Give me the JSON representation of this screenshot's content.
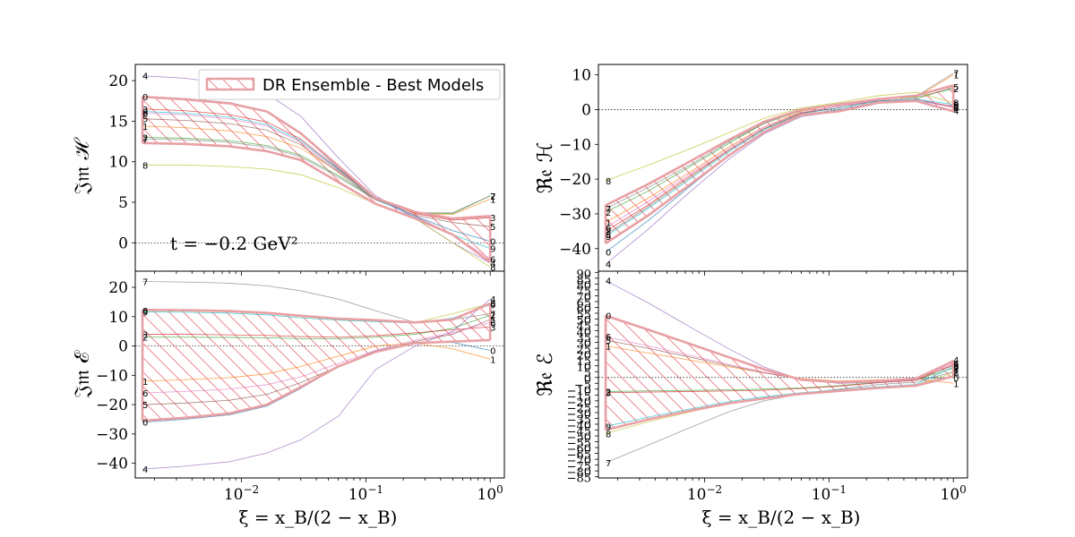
{
  "figure": {
    "xlabel": "ξ = x_B/(2 − x_B)",
    "legend_label": "DR Ensemble - Best Models",
    "annotation": "t = −0.2 GeV²"
  },
  "colors": {
    "band_edge": "#e8a0a4",
    "band_hatch": "#e87a80",
    "models": [
      "#1f77b4",
      "#ff7f0e",
      "#2ca02c",
      "#d62728",
      "#9467bd",
      "#8c564b",
      "#e377c2",
      "#7f7f7f",
      "#bcbd22",
      "#17becf"
    ]
  },
  "chart_data": [
    {
      "type": "line",
      "id": "imH",
      "ylabel": "𝔍𝔪 ℋ",
      "xscale": "log",
      "xlim": [
        0.0014,
        1.3
      ],
      "ylim": [
        -3.5,
        22
      ],
      "yticks": [
        0,
        5,
        10,
        15,
        20
      ],
      "xticks": [
        "10^-2",
        "10^-1",
        "10^0"
      ],
      "hline": 0,
      "x": [
        0.0016,
        0.0035,
        0.008,
        0.016,
        0.03,
        0.06,
        0.12,
        0.25,
        0.5,
        1.0
      ],
      "band": {
        "upper": [
          18.0,
          17.7,
          17.2,
          16.2,
          13.5,
          9.5,
          5.5,
          3.8,
          3.0,
          3.3
        ],
        "lower": [
          12.3,
          12.2,
          11.9,
          11.3,
          10.2,
          7.5,
          4.8,
          3.0,
          1.0,
          -2.4
        ]
      },
      "series": [
        {
          "name": "0",
          "values": [
            18.0,
            17.8,
            17.3,
            16.2,
            13.5,
            9.2,
            5.6,
            3.3,
            1.5,
            0.2
          ]
        },
        {
          "name": "1",
          "values": [
            14.4,
            14.2,
            13.8,
            13.1,
            11.7,
            8.8,
            5.6,
            3.6,
            3.5,
            5.4
          ]
        },
        {
          "name": "2",
          "values": [
            13.0,
            12.9,
            12.6,
            12.0,
            10.8,
            8.3,
            5.4,
            3.7,
            3.6,
            5.8
          ]
        },
        {
          "name": "3",
          "values": [
            16.5,
            16.3,
            15.8,
            14.9,
            12.8,
            9.1,
            5.5,
            3.6,
            2.8,
            3.1
          ]
        },
        {
          "name": "4",
          "values": [
            20.6,
            20.3,
            19.6,
            18.4,
            15.6,
            10.5,
            5.8,
            3.0,
            0.0,
            -2.5
          ]
        },
        {
          "name": "5",
          "values": [
            15.3,
            15.1,
            14.7,
            13.9,
            12.1,
            8.7,
            5.3,
            3.4,
            2.5,
            2.0
          ]
        },
        {
          "name": "6",
          "values": [
            16.0,
            15.8,
            15.3,
            14.4,
            12.4,
            8.9,
            5.4,
            3.3,
            1.0,
            -2.0
          ]
        },
        {
          "name": "7",
          "values": [
            12.8,
            12.7,
            12.4,
            11.8,
            10.6,
            8.1,
            5.3,
            3.7,
            3.7,
            5.8
          ]
        },
        {
          "name": "8",
          "values": [
            9.6,
            9.6,
            9.4,
            9.1,
            8.4,
            6.8,
            4.8,
            3.0,
            0.0,
            -3.0
          ]
        },
        {
          "name": "9",
          "values": [
            16.2,
            16.0,
            15.5,
            14.6,
            12.6,
            9.0,
            5.4,
            3.2,
            1.0,
            -0.7
          ]
        }
      ],
      "end_labels_left": [
        "4",
        "0",
        "3",
        "9",
        "6",
        "1",
        "2",
        "8"
      ],
      "end_labels_right": [
        "7",
        "1",
        "3",
        "5",
        "0",
        "9",
        "6",
        "2",
        "8"
      ]
    },
    {
      "type": "line",
      "id": "reH",
      "ylabel": "ℜ𝔢 ℋ",
      "xscale": "log",
      "xlim": [
        0.0014,
        1.3
      ],
      "ylim": [
        -46.5,
        13
      ],
      "yticks": [
        -40,
        -30,
        -20,
        -10,
        0,
        10
      ],
      "xticks": [
        "10^-2",
        "10^-1",
        "10^0"
      ],
      "hline": 0,
      "x": [
        0.0016,
        0.0035,
        0.008,
        0.016,
        0.03,
        0.06,
        0.12,
        0.25,
        0.5,
        1.0
      ],
      "band": {
        "upper": [
          -27.5,
          -21.5,
          -14.5,
          -8.5,
          -3.5,
          0.0,
          1.5,
          3.0,
          4.0,
          7.0
        ],
        "lower": [
          -38.5,
          -30.5,
          -21.0,
          -13.0,
          -6.5,
          -1.5,
          -0.5,
          2.0,
          2.5,
          -0.5
        ]
      },
      "series": [
        {
          "name": "0",
          "values": [
            -41.0,
            -32.0,
            -21.5,
            -13.0,
            -6.5,
            -1.5,
            0.0,
            2.2,
            2.5,
            1.0
          ]
        },
        {
          "name": "1",
          "values": [
            -32.5,
            -25.5,
            -17.5,
            -10.5,
            -5.0,
            -0.5,
            1.5,
            3.0,
            3.5,
            10.0
          ]
        },
        {
          "name": "2",
          "values": [
            -29.5,
            -23.5,
            -16.0,
            -9.5,
            -4.0,
            -0.3,
            1.5,
            3.0,
            3.5,
            6.0
          ]
        },
        {
          "name": "3",
          "values": [
            -35.0,
            -27.5,
            -18.5,
            -11.5,
            -5.5,
            -1.0,
            0.5,
            2.5,
            3.0,
            0.8
          ]
        },
        {
          "name": "4",
          "values": [
            -44.5,
            -34.5,
            -23.0,
            -14.0,
            -7.0,
            -2.0,
            -0.5,
            2.0,
            2.5,
            -0.3
          ]
        },
        {
          "name": "5",
          "values": [
            -36.0,
            -28.0,
            -19.0,
            -11.5,
            -5.5,
            -1.0,
            1.0,
            2.5,
            3.0,
            6.5
          ]
        },
        {
          "name": "6",
          "values": [
            -34.0,
            -26.5,
            -18.0,
            -11.0,
            -5.0,
            -0.8,
            1.0,
            2.7,
            3.0,
            0.5
          ]
        },
        {
          "name": "7",
          "values": [
            -28.5,
            -22.5,
            -15.5,
            -9.0,
            -4.0,
            0.0,
            1.5,
            3.2,
            3.8,
            10.5
          ]
        },
        {
          "name": "8",
          "values": [
            -20.5,
            -16.0,
            -11.0,
            -6.5,
            -2.5,
            0.5,
            2.0,
            4.0,
            5.0,
            2.0
          ]
        },
        {
          "name": "9",
          "values": [
            -36.5,
            -28.5,
            -19.5,
            -12.0,
            -5.8,
            -1.2,
            0.5,
            2.5,
            3.0,
            1.5
          ]
        }
      ],
      "end_labels_left": [
        "8",
        "2",
        "7",
        "1",
        "3",
        "6",
        "5",
        "9",
        "0",
        "4"
      ],
      "end_labels_right": [
        "7",
        "1",
        "2",
        "5",
        "0",
        "9",
        "3",
        "6",
        "4"
      ]
    },
    {
      "type": "line",
      "id": "imE",
      "ylabel": "𝔍𝔪 ℰ",
      "xscale": "log",
      "xlim": [
        0.0014,
        1.3
      ],
      "ylim": [
        -45,
        25.5
      ],
      "yticks": [
        -40,
        -30,
        -20,
        -10,
        0,
        10,
        20
      ],
      "xticks": [
        "10^-2",
        "10^-1",
        "10^0"
      ],
      "hline": 0,
      "x": [
        0.0016,
        0.0035,
        0.008,
        0.016,
        0.03,
        0.06,
        0.12,
        0.25,
        0.5,
        1.0
      ],
      "band": {
        "upper": [
          12.3,
          12.2,
          11.9,
          11.3,
          10.3,
          9.3,
          8.8,
          8.0,
          9.0,
          14.5
        ],
        "lower": [
          -25.5,
          -24.5,
          -23.0,
          -20.0,
          -14.0,
          -7.0,
          -2.0,
          1.0,
          1.5,
          2.0
        ]
      },
      "series": [
        {
          "name": "0",
          "values": [
            -26.0,
            -25.0,
            -23.5,
            -20.5,
            -14.5,
            -7.0,
            -1.5,
            1.0,
            1.2,
            -1.5
          ]
        },
        {
          "name": "1",
          "values": [
            -12.0,
            -11.5,
            -10.8,
            -9.5,
            -7.0,
            -3.5,
            0.0,
            1.0,
            -1.0,
            -4.5
          ]
        },
        {
          "name": "2",
          "values": [
            3.0,
            3.0,
            2.9,
            2.8,
            2.5,
            2.5,
            3.0,
            4.0,
            6.0,
            10.5
          ]
        },
        {
          "name": "3",
          "values": [
            4.0,
            4.0,
            3.8,
            3.6,
            3.2,
            3.0,
            3.5,
            4.5,
            5.5,
            6.5
          ]
        },
        {
          "name": "4",
          "values": [
            -42.0,
            -41.0,
            -39.5,
            -36.5,
            -32.0,
            -24.0,
            -8.0,
            0.0,
            5.0,
            16.0
          ]
        },
        {
          "name": "5",
          "values": [
            -20.0,
            -19.5,
            -18.5,
            -16.5,
            -12.5,
            -7.0,
            -2.0,
            1.5,
            4.0,
            9.0
          ]
        },
        {
          "name": "6",
          "values": [
            -16.0,
            -15.5,
            -14.7,
            -13.2,
            -10.5,
            -6.0,
            -1.5,
            2.0,
            4.5,
            8.0
          ]
        },
        {
          "name": "7",
          "values": [
            22.0,
            21.8,
            21.4,
            20.5,
            18.8,
            16.0,
            12.0,
            8.0,
            9.0,
            11.0
          ]
        },
        {
          "name": "8",
          "values": [
            12.0,
            11.9,
            11.6,
            11.0,
            10.0,
            9.0,
            8.5,
            8.0,
            11.0,
            14.5
          ]
        },
        {
          "name": "9",
          "values": [
            11.6,
            11.5,
            11.2,
            10.6,
            9.6,
            8.8,
            8.3,
            7.8,
            9.5,
            14.0
          ]
        }
      ],
      "end_labels_left": [
        "7",
        "8",
        "9",
        "3",
        "2",
        "1",
        "6",
        "5",
        "0",
        "4"
      ],
      "end_labels_right": [
        "4",
        "8",
        "9",
        "2",
        "6",
        "5",
        "3",
        "0",
        "1"
      ]
    },
    {
      "type": "line",
      "id": "reE",
      "ylabel": "ℜ𝔢 ℰ",
      "xscale": "log",
      "xlim": [
        0.0014,
        1.3
      ],
      "ylim": [
        -86,
        91
      ],
      "yticks": [
        -85,
        -80,
        -75,
        -70,
        -65,
        -60,
        -55,
        -50,
        -45,
        -40,
        -35,
        -30,
        -25,
        -20,
        -15,
        -10,
        -5,
        0,
        5,
        10,
        15,
        20,
        25,
        30,
        35,
        40,
        45,
        50,
        55,
        60,
        65,
        70,
        75,
        80,
        85,
        90
      ],
      "xticks": [
        "10^-2",
        "10^-1",
        "10^0"
      ],
      "hline": 0,
      "x": [
        0.0016,
        0.0035,
        0.008,
        0.016,
        0.03,
        0.06,
        0.12,
        0.25,
        0.5,
        1.0
      ],
      "band": {
        "upper": [
          53.0,
          41.0,
          28.0,
          17.0,
          7.0,
          -2.0,
          -4.0,
          -3.0,
          -1.0,
          14.0
        ],
        "lower": [
          -45.0,
          -36.0,
          -28.0,
          -22.0,
          -18.0,
          -14.0,
          -11.5,
          -9.0,
          -7.0,
          1.0
        ]
      },
      "series": [
        {
          "name": "0",
          "values": [
            53.0,
            41.0,
            28.0,
            17.0,
            7.0,
            -2.0,
            -4.0,
            -3.0,
            -1.0,
            0.0
          ]
        },
        {
          "name": "1",
          "values": [
            27.0,
            21.0,
            14.5,
            9.0,
            4.0,
            -1.0,
            -3.0,
            -2.0,
            -1.0,
            -5.0
          ]
        },
        {
          "name": "2",
          "values": [
            -12.0,
            -11.5,
            -11.0,
            -10.5,
            -10.0,
            -9.0,
            -7.0,
            -4.0,
            -2.0,
            8.0
          ]
        },
        {
          "name": "3",
          "values": [
            -13.0,
            -12.5,
            -12.0,
            -11.5,
            -11.0,
            -9.5,
            -7.5,
            -4.5,
            -2.5,
            11.0
          ]
        },
        {
          "name": "4",
          "values": [
            83.0,
            64.0,
            42.0,
            24.0,
            9.0,
            -2.0,
            -5.0,
            -4.0,
            -2.0,
            15.0
          ]
        },
        {
          "name": "5",
          "values": [
            32.0,
            25.0,
            17.0,
            10.0,
            4.0,
            -1.5,
            -3.5,
            -2.5,
            -1.0,
            10.0
          ]
        },
        {
          "name": "6",
          "values": [
            35.0,
            27.0,
            18.5,
            11.0,
            4.5,
            -1.5,
            -3.5,
            -2.5,
            -1.0,
            12.0
          ]
        },
        {
          "name": "7",
          "values": [
            -73.0,
            -58.0,
            -42.0,
            -29.0,
            -20.0,
            -14.0,
            -10.0,
            -6.0,
            -4.0,
            5.0
          ]
        },
        {
          "name": "8",
          "values": [
            -48.0,
            -38.0,
            -29.0,
            -22.0,
            -17.5,
            -13.5,
            -11.0,
            -8.5,
            -6.5,
            4.0
          ]
        },
        {
          "name": "9",
          "values": [
            -42.0,
            -34.0,
            -26.5,
            -20.5,
            -16.5,
            -13.0,
            -10.5,
            -8.0,
            -6.0,
            9.0
          ]
        }
      ],
      "end_labels_left": [
        "4",
        "0",
        "6",
        "5",
        "1",
        "2",
        "3",
        "9",
        "8",
        "7"
      ],
      "end_labels_right": [
        "4",
        "6",
        "3",
        "2",
        "9",
        "8",
        "5",
        "7",
        "0",
        "1"
      ]
    }
  ]
}
